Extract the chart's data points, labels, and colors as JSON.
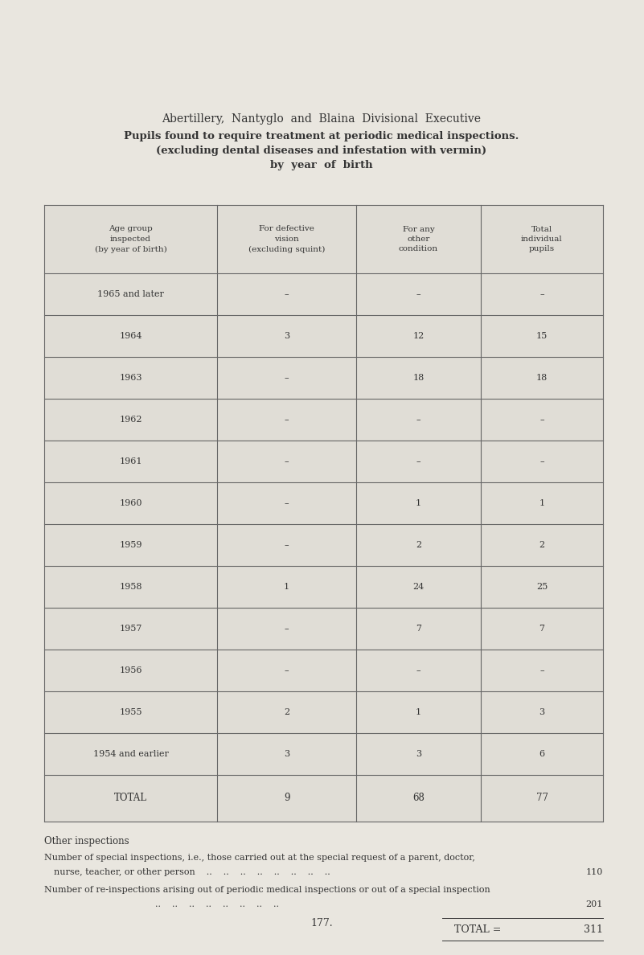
{
  "title_line1": "Abertillery,  Nantyglo  and  Blaina  Divisional  Executive",
  "title_line2": "Pupils found to require treatment at periodic medical inspections.",
  "title_line3": "(excluding dental diseases and infestation with vermin)",
  "title_line4": "by  year  of  birth",
  "col_headers": [
    "Age group\ninspected\n(by year of birth)",
    "For defective\nvision\n(excluding squint)",
    "For any\nother\ncondition",
    "Total\nindividual\npupils"
  ],
  "rows": [
    [
      "1965 and later",
      "–",
      "–",
      "–"
    ],
    [
      "1964",
      "3",
      "12",
      "15"
    ],
    [
      "1963",
      "–",
      "18",
      "18"
    ],
    [
      "1962",
      "–",
      "–",
      "–"
    ],
    [
      "1961",
      "–",
      "–",
      "–"
    ],
    [
      "1960",
      "–",
      "1",
      "1"
    ],
    [
      "1959",
      "–",
      "2",
      "2"
    ],
    [
      "1958",
      "1",
      "24",
      "25"
    ],
    [
      "1957",
      "–",
      "7",
      "7"
    ],
    [
      "1956",
      "–",
      "–",
      "–"
    ],
    [
      "1955",
      "2",
      "1",
      "3"
    ],
    [
      "1954 and earlier",
      "3",
      "3",
      "6"
    ]
  ],
  "total_row": [
    "TOTAL",
    "9",
    "68",
    "77"
  ],
  "other_inspections_header": "Other inspections",
  "special_line1": "Number of special inspections, i.e., those carried out at the special request of a parent, doctor,",
  "special_line2a": "   nurse, teacher, or other person    ..    ..    ..    ..    ..    ..    ..    ..  ",
  "special_val": "110",
  "reinspection_line1": "Number of re-inspections arising out of periodic medical inspections or out of a special inspection",
  "reinspection_line2a": "                                          ..    ..    ..    ..    ..    ..    ..    ..  ",
  "reinspection_val": "201",
  "total_label": "TOTAL =",
  "total_value": "311",
  "page_number": "177.",
  "bg_color": "#e9e6df",
  "table_bg": "#e0ddd6",
  "border_color": "#666666",
  "text_color": "#333333"
}
